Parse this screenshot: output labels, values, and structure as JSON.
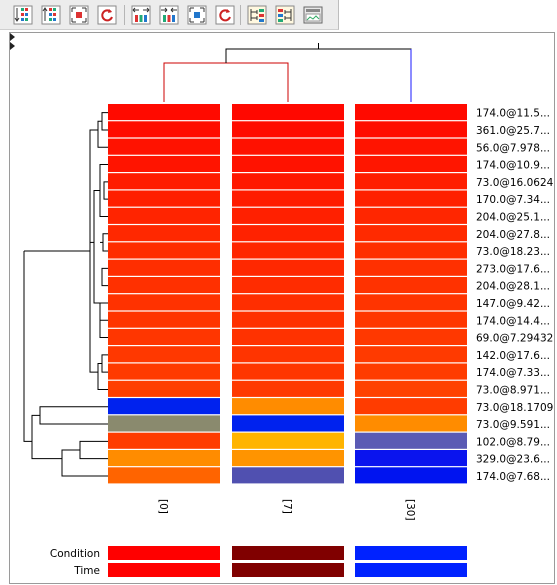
{
  "toolbar": {
    "buttons": [
      {
        "icon": "sort-rows-icon"
      },
      {
        "icon": "sort-rows-alt-icon"
      },
      {
        "icon": "fit-rows-icon"
      },
      {
        "icon": "refresh-rows-icon"
      },
      {
        "icon": "expand-columns-icon"
      },
      {
        "icon": "collapse-columns-icon"
      },
      {
        "icon": "fit-columns-icon"
      },
      {
        "icon": "refresh-columns-icon"
      },
      {
        "icon": "tree-layout-icon"
      },
      {
        "icon": "tree-layout-alt-icon"
      },
      {
        "icon": "image-export-icon"
      }
    ]
  },
  "heatmap": {
    "columns": [
      "[0]",
      "[7]",
      "[30]"
    ],
    "rows": [
      {
        "label": "174.0@11.5...",
        "colors": [
          "#ff0a00",
          "#ff0800",
          "#ff0a00"
        ]
      },
      {
        "label": "361.0@25.7...",
        "colors": [
          "#ff0c00",
          "#ff0b00",
          "#ff0c00"
        ]
      },
      {
        "label": "56.0@7.978...",
        "colors": [
          "#ff1200",
          "#ff1100",
          "#ff1400"
        ]
      },
      {
        "label": "174.0@10.9...",
        "colors": [
          "#ff1400",
          "#ff1200",
          "#ff1600"
        ]
      },
      {
        "label": "73.0@16.0624",
        "colors": [
          "#ff1c00",
          "#ff1800",
          "#ff1e00"
        ]
      },
      {
        "label": "170.0@7.34...",
        "colors": [
          "#ff1f00",
          "#ff1c00",
          "#ff2000"
        ]
      },
      {
        "label": "204.0@25.1...",
        "colors": [
          "#ff2400",
          "#ff2000",
          "#ff2600"
        ]
      },
      {
        "label": "204.0@27.8...",
        "colors": [
          "#ff2800",
          "#ff2200",
          "#ff2a00"
        ]
      },
      {
        "label": "73.0@18.23...",
        "colors": [
          "#ff2c00",
          "#ff2600",
          "#ff2e00"
        ]
      },
      {
        "label": "273.0@17.6...",
        "colors": [
          "#ff2e00",
          "#ff2800",
          "#ff3000"
        ]
      },
      {
        "label": "204.0@28.1...",
        "colors": [
          "#ff3000",
          "#ff2c00",
          "#ff3200"
        ]
      },
      {
        "label": "147.0@9.42...",
        "colors": [
          "#ff3200",
          "#ff2e00",
          "#ff3400"
        ]
      },
      {
        "label": "174.0@14.4...",
        "colors": [
          "#ff3400",
          "#ff3000",
          "#ff3600"
        ]
      },
      {
        "label": "69.0@7.29432",
        "colors": [
          "#ff3600",
          "#ff3200",
          "#ff3800"
        ]
      },
      {
        "label": "142.0@17.6...",
        "colors": [
          "#ff3800",
          "#ff3400",
          "#ff3a00"
        ]
      },
      {
        "label": "174.0@7.33...",
        "colors": [
          "#ff3a00",
          "#ff3600",
          "#ff3c00"
        ]
      },
      {
        "label": "73.0@8.971...",
        "colors": [
          "#ff3e00",
          "#ff3a00",
          "#ff4200"
        ]
      },
      {
        "label": "73.0@18.1709",
        "colors": [
          "#0022ee",
          "#ff8c00",
          "#ff3c00"
        ]
      },
      {
        "label": "73.0@9.591...",
        "colors": [
          "#8a8a6e",
          "#0022ee",
          "#ff8c00"
        ]
      },
      {
        "label": "102.0@8.79...",
        "colors": [
          "#ff3c00",
          "#ffb400",
          "#5a5ab4"
        ]
      },
      {
        "label": "329.0@23.6...",
        "colors": [
          "#ff8c00",
          "#ff9400",
          "#0a14ee"
        ]
      },
      {
        "label": "174.0@7.68...",
        "colors": [
          "#ff6400",
          "#5050b0",
          "#0014f0"
        ]
      }
    ],
    "legend": [
      {
        "label": "Condition",
        "colors": [
          "#ff0000",
          "#800000",
          "#0022ff"
        ]
      },
      {
        "label": "Time",
        "colors": [
          "#ff0000",
          "#800000",
          "#0022ff"
        ]
      }
    ],
    "dendrogram_colors": {
      "col_branch_1": "#cc0000",
      "col_branch_2": "#1a1aff"
    }
  }
}
